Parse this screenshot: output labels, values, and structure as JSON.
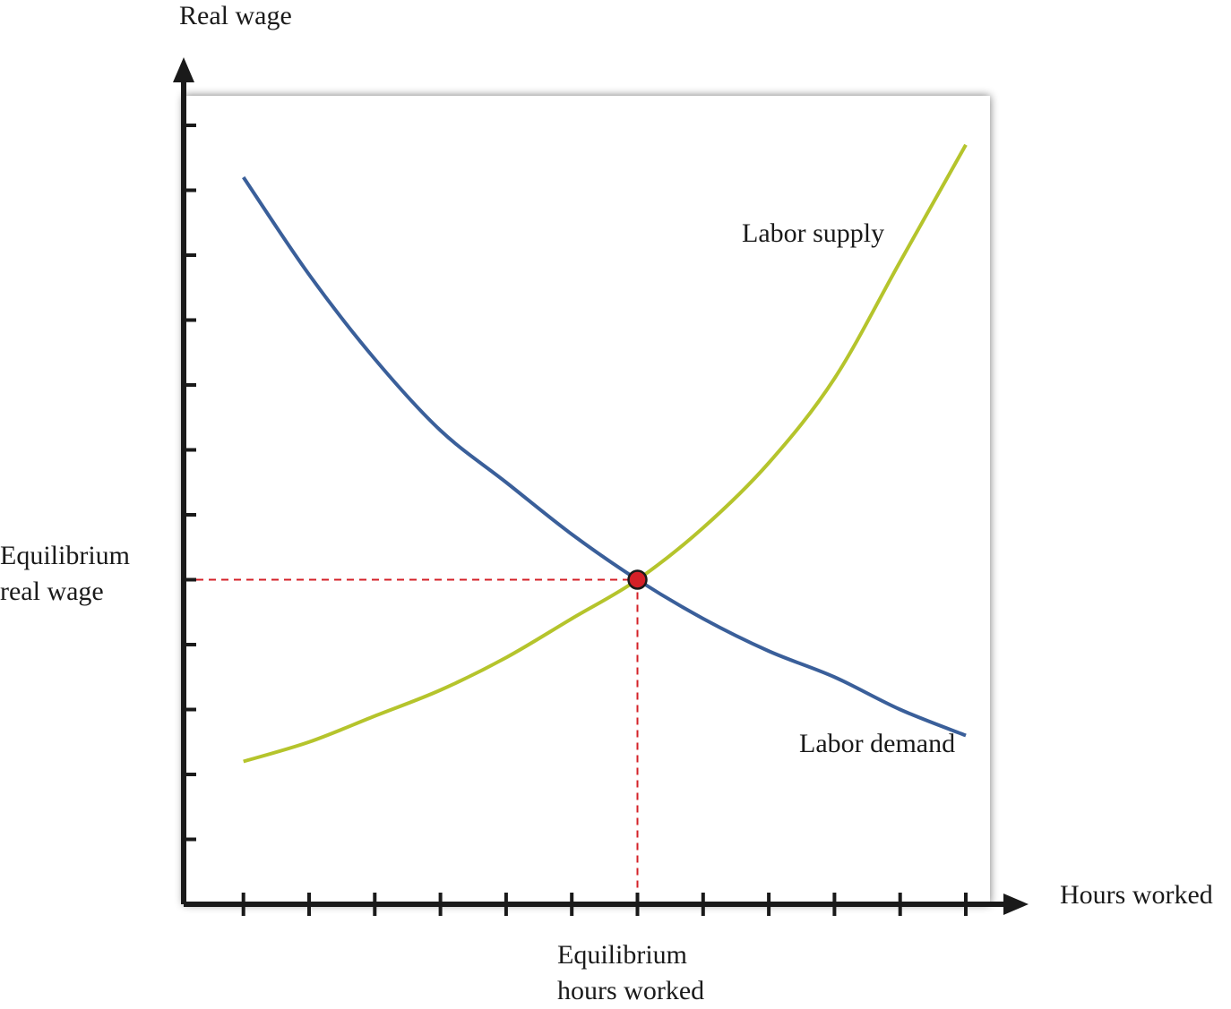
{
  "chart_data": {
    "type": "line",
    "xlabel": "Hours worked",
    "ylabel": "Real wage",
    "x_tick_count": 12,
    "y_tick_count": 12,
    "series": [
      {
        "name": "Labor demand",
        "color": "#3a5f9a",
        "points": [
          [
            1,
            11.2
          ],
          [
            2,
            9.7
          ],
          [
            3,
            8.4
          ],
          [
            4,
            7.3
          ],
          [
            5,
            6.5
          ],
          [
            6,
            5.7
          ],
          [
            7,
            5.0
          ],
          [
            8,
            4.4
          ],
          [
            9,
            3.9
          ],
          [
            10,
            3.5
          ],
          [
            11,
            3.0
          ],
          [
            12,
            2.6
          ]
        ]
      },
      {
        "name": "Labor supply",
        "color": "#b5c42c",
        "points": [
          [
            1,
            2.2
          ],
          [
            2,
            2.5
          ],
          [
            3,
            2.9
          ],
          [
            4,
            3.3
          ],
          [
            5,
            3.8
          ],
          [
            6,
            4.4
          ],
          [
            7,
            5.0
          ],
          [
            8,
            5.8
          ],
          [
            9,
            6.8
          ],
          [
            10,
            8.1
          ],
          [
            11,
            9.9
          ],
          [
            12,
            11.7
          ]
        ]
      }
    ],
    "equilibrium": {
      "x": 7,
      "y": 5.0,
      "x_label": [
        "Equilibrium",
        "hours worked"
      ],
      "y_label": [
        "Equilibrium",
        "real wage"
      ],
      "point_color": "#d42027",
      "guide_color": "#d42027"
    },
    "frame_color": "#ffffff",
    "axis_color": "#1a1a1a"
  }
}
